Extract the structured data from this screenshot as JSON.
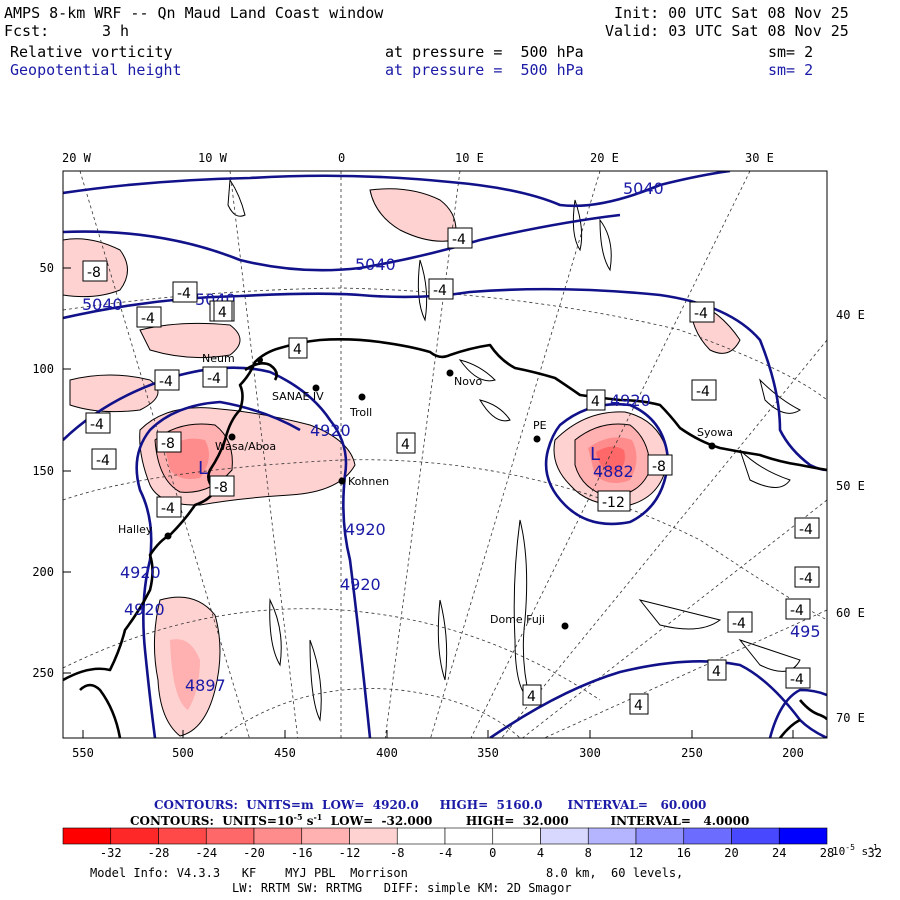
{
  "header": {
    "title": "AMPS 8-km WRF -- Qn Maud Land Coast window",
    "fcst_label": "Fcst:",
    "fcst_value": "3 h",
    "init": "Init: 00 UTC Sat 08 Nov 25",
    "valid": "Valid: 03 UTC Sat 08 Nov 25",
    "field1": {
      "name": "Relative vorticity",
      "level": "at pressure =  500 hPa",
      "sm": "sm= 2"
    },
    "field2": {
      "name": "Geopotential height",
      "level": "at pressure =  500 hPa",
      "sm": "sm= 2"
    }
  },
  "axes": {
    "top_lon": [
      "20 W",
      "10 W",
      "0",
      "10 E",
      "20 E",
      "30 E"
    ],
    "right_lon": [
      "40 E",
      "50 E",
      "60 E",
      "70 E"
    ],
    "left_y": [
      "50",
      "100",
      "150",
      "200",
      "250"
    ],
    "bottom_x": [
      "550",
      "500",
      "450",
      "400",
      "350",
      "300",
      "250",
      "200"
    ]
  },
  "stations": [
    "Neum",
    "SANAE IV",
    "Troll",
    "Novo",
    "Wasa/Aboa",
    "Kohnen",
    "Halley",
    "PE",
    "Syowa",
    "Dome Fuji"
  ],
  "height_labels": [
    "5040",
    "5040",
    "5040",
    "5040",
    "4920",
    "4920",
    "4920",
    "4920",
    "4920",
    "4920",
    "4882",
    "4897",
    "495"
  ],
  "vort_labels": [
    "-8",
    "-4",
    "-4",
    "-4",
    "-4",
    "-4",
    "-4",
    "-4",
    "-4",
    "-4",
    "-4",
    "-4",
    "-4",
    "-4",
    "-4",
    "-4",
    "-4",
    "-4",
    "-8",
    "-8",
    "-8",
    "-12",
    "4",
    "4",
    "4",
    "4",
    "4",
    "4",
    "4"
  ],
  "extrema": [
    "L",
    "L"
  ],
  "contour_info": {
    "height": {
      "label": "CONTOURS:  UNITS=m",
      "low": "LOW=  4920.0",
      "high": "HIGH=  5160.0",
      "interval": "INTERVAL=   60.000"
    },
    "vort": {
      "label": "CONTOURS:  UNITS=10",
      "exp": "-5",
      "unit": " s",
      "unit_exp": "-1",
      "low": "LOW=  -32.000",
      "high": "HIGH=  32.000",
      "interval": "INTERVAL=   4.0000"
    }
  },
  "colorbar": {
    "labels": [
      "-32",
      "-28",
      "-24",
      "-20",
      "-16",
      "-12",
      "-8",
      "-4",
      "0",
      "4",
      "8",
      "12",
      "16",
      "20",
      "24",
      "28",
      "32"
    ],
    "unit": "10",
    "unit_exp": "-5",
    "unit_s": " s",
    "unit_s_exp": "-1",
    "colors": [
      "#ff0000",
      "#ff2828",
      "#ff4848",
      "#ff6868",
      "#ff8c8c",
      "#ffb0b0",
      "#ffd2d2",
      "#ffffff",
      "#ffffff",
      "#ffffff",
      "#d8d8ff",
      "#b4b4ff",
      "#9090ff",
      "#6c6cff",
      "#4848ff",
      "#0000ff"
    ]
  },
  "footer": {
    "line1_left": "Model Info: V4.3.3   KF    MYJ PBL  Morrison",
    "line1_right": "8.0 km,  60 levels,",
    "line2": "LW: RRTM SW: RRTMG   DIFF: simple KM: 2D Smagor"
  }
}
